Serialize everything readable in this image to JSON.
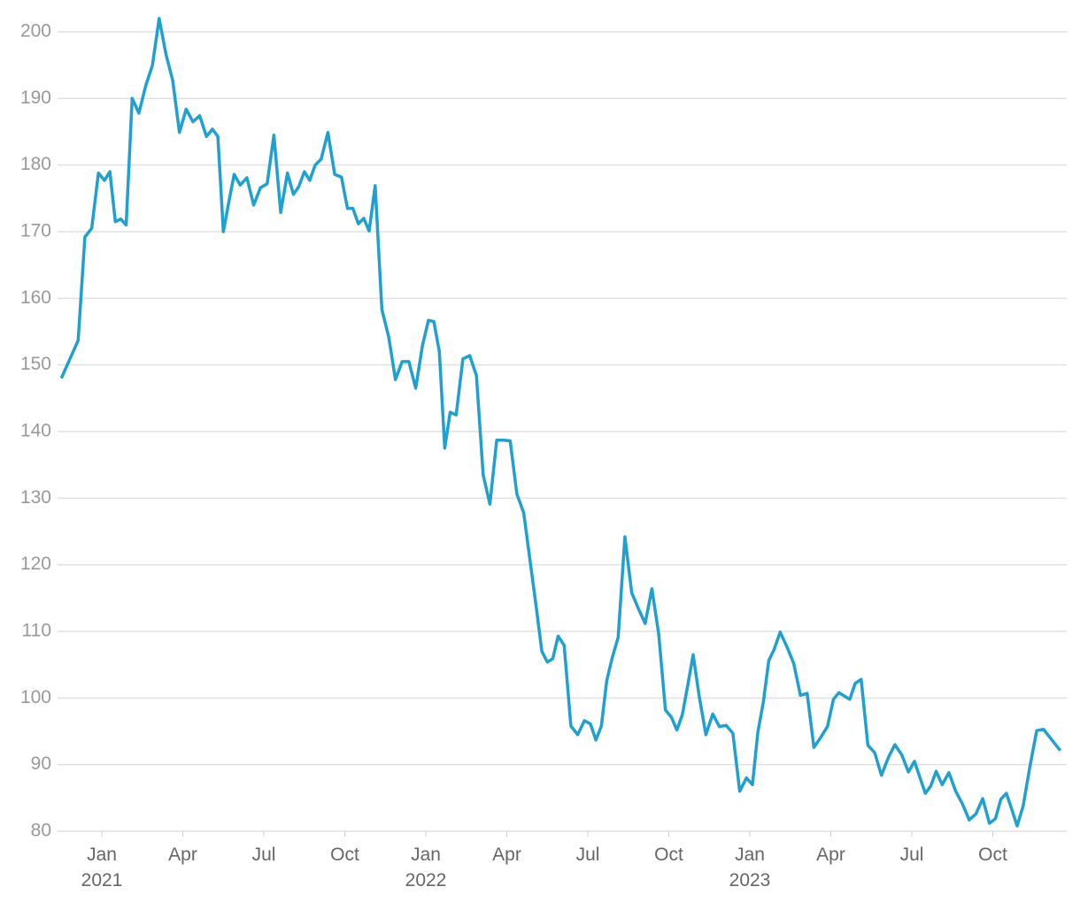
{
  "chart_data": {
    "type": "line",
    "color": "#1ea0d0",
    "grid": true,
    "xlim": [
      "2020-11",
      "2023-12"
    ],
    "xticks": [
      {
        "value": "2021-01",
        "label": "Jan\n2021"
      },
      {
        "value": "2021-04",
        "label": "Apr"
      },
      {
        "value": "2021-07",
        "label": "Jul"
      },
      {
        "value": "2021-10",
        "label": "Oct"
      },
      {
        "value": "2022-01",
        "label": "Jan\n2022"
      },
      {
        "value": "2022-04",
        "label": "Apr"
      },
      {
        "value": "2022-07",
        "label": "Jul"
      },
      {
        "value": "2022-10",
        "label": "Oct"
      },
      {
        "value": "2023-01",
        "label": "Jan\n2023"
      },
      {
        "value": "2023-04",
        "label": "Apr"
      },
      {
        "value": "2023-07",
        "label": "Jul"
      },
      {
        "value": "2023-10",
        "label": "Oct"
      }
    ],
    "ylim": [
      80,
      200
    ],
    "yticks": [
      80,
      90,
      100,
      110,
      120,
      130,
      140,
      150,
      160,
      170,
      180,
      190,
      200
    ],
    "x": [
      "2020-11",
      "2020-12",
      "2020-12",
      "2020-12",
      "2020-12",
      "2021-01",
      "2021-01",
      "2021-01",
      "2021-01",
      "2021-01",
      "2021-02",
      "2021-02",
      "2021-02",
      "2021-02",
      "2021-03",
      "2021-03",
      "2021-03",
      "2021-03",
      "2021-04",
      "2021-04",
      "2021-04",
      "2021-04",
      "2021-05",
      "2021-05",
      "2021-05",
      "2021-05",
      "2021-05",
      "2021-06",
      "2021-06",
      "2021-06",
      "2021-06",
      "2021-07",
      "2021-07",
      "2021-07",
      "2021-07",
      "2021-08",
      "2021-08",
      "2021-08",
      "2021-08",
      "2021-08",
      "2021-09",
      "2021-09",
      "2021-09",
      "2021-09",
      "2021-10",
      "2021-10",
      "2021-10",
      "2021-10",
      "2021-10",
      "2021-11",
      "2021-11",
      "2021-11",
      "2021-11",
      "2021-12",
      "2021-12",
      "2021-12",
      "2021-12",
      "2022-01",
      "2022-01",
      "2022-01",
      "2022-01",
      "2022-01",
      "2022-02",
      "2022-02",
      "2022-02",
      "2022-02",
      "2022-03",
      "2022-03",
      "2022-03",
      "2022-03",
      "2022-04",
      "2022-04",
      "2022-04",
      "2022-04",
      "2022-05",
      "2022-05",
      "2022-05",
      "2022-05",
      "2022-05",
      "2022-06",
      "2022-06",
      "2022-06",
      "2022-06",
      "2022-07",
      "2022-07",
      "2022-07",
      "2022-07",
      "2022-07",
      "2022-08",
      "2022-08",
      "2022-08",
      "2022-08",
      "2022-09",
      "2022-09",
      "2022-09",
      "2022-09",
      "2022-10",
      "2022-10",
      "2022-10",
      "2022-10",
      "2022-10",
      "2022-11",
      "2022-11",
      "2022-11",
      "2022-11",
      "2022-12",
      "2022-12",
      "2022-12",
      "2022-12",
      "2023-01",
      "2023-01",
      "2023-01",
      "2023-01",
      "2023-01",
      "2023-02",
      "2023-02",
      "2023-02",
      "2023-02",
      "2023-03",
      "2023-03",
      "2023-03",
      "2023-03",
      "2023-04",
      "2023-04",
      "2023-04",
      "2023-04",
      "2023-04",
      "2023-05",
      "2023-05",
      "2023-05",
      "2023-05",
      "2023-06",
      "2023-06",
      "2023-06",
      "2023-06",
      "2023-07",
      "2023-07",
      "2023-07",
      "2023-07",
      "2023-07",
      "2023-08",
      "2023-08",
      "2023-08",
      "2023-08",
      "2023-09",
      "2023-09",
      "2023-09",
      "2023-09",
      "2023-10",
      "2023-10",
      "2023-10",
      "2023-10",
      "2023-10",
      "2023-11",
      "2023-11",
      "2023-11",
      "2023-11",
      "2023-12"
    ],
    "values": [
      148,
      153.7,
      169.2,
      170.5,
      178.8,
      177.7,
      179,
      171.5,
      171.9,
      171,
      190,
      187.8,
      191.9,
      195,
      202,
      196.7,
      192.7,
      184.9,
      188.4,
      186.5,
      187.4,
      184.3,
      185.4,
      184.3,
      170,
      174.4,
      178.6,
      177,
      178.1,
      174,
      176.6,
      177.2,
      184.5,
      172.9,
      178.8,
      175.6,
      176.8,
      179,
      177.7,
      180,
      180.9,
      184.9,
      178.6,
      178.2,
      173.5,
      173.5,
      171.2,
      172,
      170.1,
      176.9,
      158.3,
      154.2,
      147.8,
      150.5,
      150.5,
      146.5,
      152.9,
      156.7,
      156.5,
      152,
      137.5,
      142.9,
      142.5,
      150.9,
      151.4,
      148.4,
      133.5,
      129.1,
      138.7,
      138.7,
      138.6,
      130.6,
      127.8,
      120.2,
      113.4,
      107,
      105.4,
      105.9,
      109.3,
      107.9,
      95.8,
      94.5,
      96.6,
      96.1,
      93.7,
      95.8,
      102.6,
      106,
      109.1,
      124.2,
      115.8,
      113.4,
      111.2,
      116.4,
      109.6,
      98.2,
      97.1,
      95.2,
      97.5,
      101.9,
      106.5,
      100.3,
      94.5,
      97.6,
      95.7,
      95.9,
      94.7,
      86,
      88,
      87,
      94.9,
      99.4,
      105.6,
      107.3,
      109.9,
      107.7,
      105.2,
      100.4,
      100.7,
      92.6,
      94.1,
      95.7,
      99.8,
      100.8,
      100.3,
      99.8,
      102.2,
      102.8,
      92.9,
      91.8,
      88.4,
      91,
      93,
      91.5,
      88.9,
      90.5,
      88.1,
      85.7,
      86.8,
      89,
      87,
      88.8,
      86,
      84.1,
      81.7,
      82.6,
      84.9,
      81.2,
      81.9,
      84.8,
      85.7,
      83.3,
      80.8,
      83.8,
      89.7,
      95.1,
      95.3,
      92.1
    ]
  }
}
